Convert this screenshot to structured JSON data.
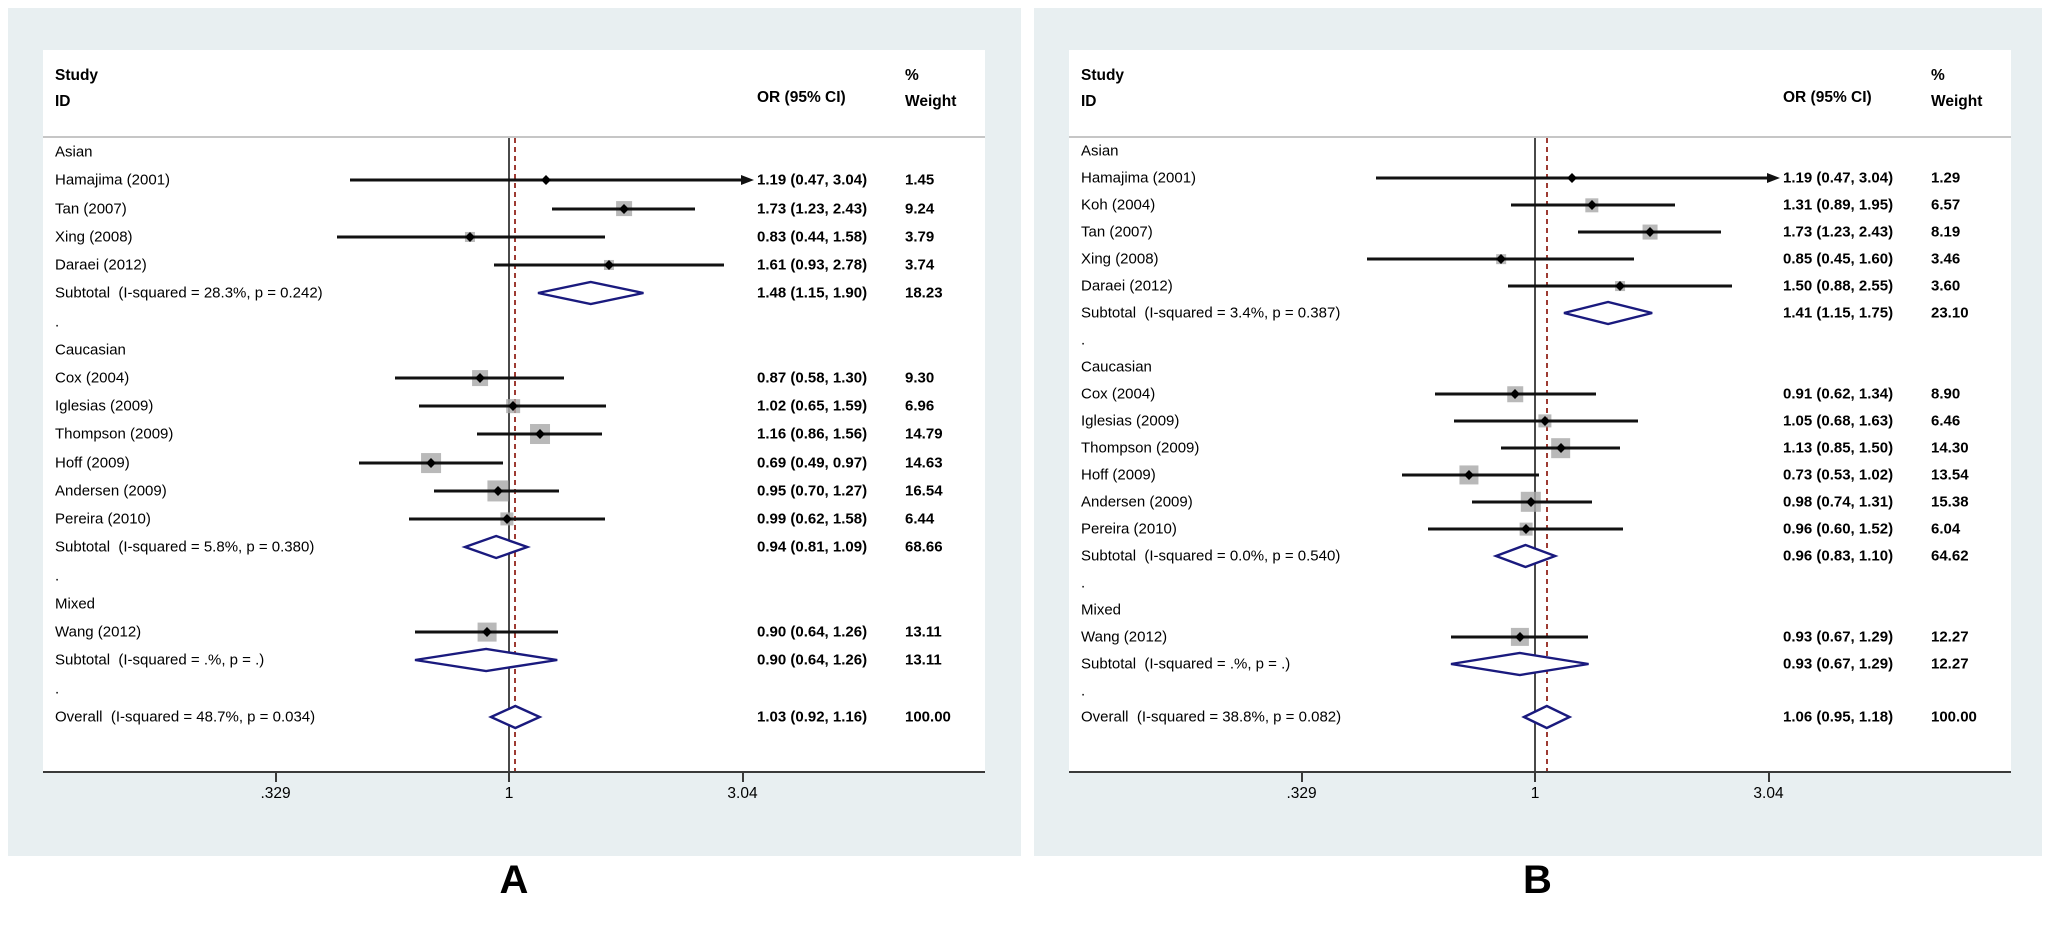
{
  "figure": {
    "description": "Two forest plots (meta-analysis of odds ratios by ethnicity subgroup)",
    "colors": {
      "panel_background": "#e8eff1",
      "plot_background": "#ffffff",
      "diamond_outline": "#1a1a7e",
      "dashed_overall_line": "#9e3b33",
      "null_line": "#4a4a4a",
      "ci_line": "#111111",
      "weight_square": "#a8a8a8"
    }
  },
  "chart_data": [
    {
      "type": "forest",
      "panel_label": "A",
      "columns": {
        "study_line1": "Study",
        "study_line2": "ID",
        "or": "OR (95% CI)",
        "pct": "%",
        "weight": "Weight"
      },
      "axis": {
        "scale": "log",
        "ticks": [
          ".329",
          "1",
          "3.04"
        ],
        "tick_values": [
          0.329,
          1,
          3.04
        ],
        "null_line": 1,
        "overall_or": 1.03
      },
      "rows": [
        {
          "kind": "group",
          "label": "Asian"
        },
        {
          "kind": "study",
          "label": "Hamajima (2001)",
          "or": 1.19,
          "lo": 0.47,
          "hi": 3.04,
          "arrow": true,
          "or_text": "1.19 (0.47, 3.04)",
          "weight": 1.45,
          "weight_text": "1.45"
        },
        {
          "kind": "study",
          "label": "Tan (2007)",
          "or": 1.73,
          "lo": 1.23,
          "hi": 2.43,
          "or_text": "1.73 (1.23, 2.43)",
          "weight": 9.24,
          "weight_text": "9.24"
        },
        {
          "kind": "study",
          "label": "Xing (2008)",
          "or": 0.83,
          "lo": 0.44,
          "hi": 1.58,
          "or_text": "0.83 (0.44, 1.58)",
          "weight": 3.79,
          "weight_text": "3.79"
        },
        {
          "kind": "study",
          "label": "Daraei (2012)",
          "or": 1.61,
          "lo": 0.93,
          "hi": 2.78,
          "or_text": "1.61 (0.93, 2.78)",
          "weight": 3.74,
          "weight_text": "3.74"
        },
        {
          "kind": "subtotal",
          "label": "Subtotal  (I-squared = 28.3%, p = 0.242)",
          "or": 1.48,
          "lo": 1.15,
          "hi": 1.9,
          "or_text": "1.48 (1.15, 1.90)",
          "weight_text": "18.23"
        },
        {
          "kind": "spacer",
          "label": "."
        },
        {
          "kind": "group",
          "label": "Caucasian"
        },
        {
          "kind": "study",
          "label": "Cox (2004)",
          "or": 0.87,
          "lo": 0.58,
          "hi": 1.3,
          "or_text": "0.87 (0.58, 1.30)",
          "weight": 9.3,
          "weight_text": "9.30"
        },
        {
          "kind": "study",
          "label": "Iglesias (2009)",
          "or": 1.02,
          "lo": 0.65,
          "hi": 1.59,
          "or_text": "1.02 (0.65, 1.59)",
          "weight": 6.96,
          "weight_text": "6.96"
        },
        {
          "kind": "study",
          "label": "Thompson (2009)",
          "or": 1.16,
          "lo": 0.86,
          "hi": 1.56,
          "or_text": "1.16 (0.86, 1.56)",
          "weight": 14.79,
          "weight_text": "14.79"
        },
        {
          "kind": "study",
          "label": "Hoff (2009)",
          "or": 0.69,
          "lo": 0.49,
          "hi": 0.97,
          "or_text": "0.69 (0.49, 0.97)",
          "weight": 14.63,
          "weight_text": "14.63"
        },
        {
          "kind": "study",
          "label": "Andersen (2009)",
          "or": 0.95,
          "lo": 0.7,
          "hi": 1.27,
          "or_text": "0.95 (0.70, 1.27)",
          "weight": 16.54,
          "weight_text": "16.54"
        },
        {
          "kind": "study",
          "label": "Pereira (2010)",
          "or": 0.99,
          "lo": 0.62,
          "hi": 1.58,
          "or_text": "0.99 (0.62, 1.58)",
          "weight": 6.44,
          "weight_text": "6.44"
        },
        {
          "kind": "subtotal",
          "label": "Subtotal  (I-squared = 5.8%, p = 0.380)",
          "or": 0.94,
          "lo": 0.81,
          "hi": 1.09,
          "or_text": "0.94 (0.81, 1.09)",
          "weight_text": "68.66"
        },
        {
          "kind": "spacer",
          "label": "."
        },
        {
          "kind": "group",
          "label": "Mixed"
        },
        {
          "kind": "study",
          "label": "Wang (2012)",
          "or": 0.9,
          "lo": 0.64,
          "hi": 1.26,
          "or_text": "0.90 (0.64, 1.26)",
          "weight": 13.11,
          "weight_text": "13.11"
        },
        {
          "kind": "subtotal",
          "label": "Subtotal  (I-squared = .%, p = .)",
          "or": 0.9,
          "lo": 0.64,
          "hi": 1.26,
          "or_text": "0.90 (0.64, 1.26)",
          "weight_text": "13.11"
        },
        {
          "kind": "spacer",
          "label": "."
        },
        {
          "kind": "overall",
          "label": "Overall  (I-squared = 48.7%, p = 0.034)",
          "or": 1.03,
          "lo": 0.92,
          "hi": 1.16,
          "or_text": "1.03 (0.92, 1.16)",
          "weight_text": "100.00"
        }
      ]
    },
    {
      "type": "forest",
      "panel_label": "B",
      "columns": {
        "study_line1": "Study",
        "study_line2": "ID",
        "or": "OR (95% CI)",
        "pct": "%",
        "weight": "Weight"
      },
      "axis": {
        "scale": "log",
        "ticks": [
          ".329",
          "1",
          "3.04"
        ],
        "tick_values": [
          0.329,
          1,
          3.04
        ],
        "null_line": 1,
        "overall_or": 1.06
      },
      "rows": [
        {
          "kind": "group",
          "label": "Asian"
        },
        {
          "kind": "study",
          "label": "Hamajima (2001)",
          "or": 1.19,
          "lo": 0.47,
          "hi": 3.04,
          "arrow": true,
          "or_text": "1.19 (0.47, 3.04)",
          "weight": 1.29,
          "weight_text": "1.29"
        },
        {
          "kind": "study",
          "label": "Koh (2004)",
          "or": 1.31,
          "lo": 0.89,
          "hi": 1.95,
          "or_text": "1.31 (0.89, 1.95)",
          "weight": 6.57,
          "weight_text": "6.57"
        },
        {
          "kind": "study",
          "label": "Tan (2007)",
          "or": 1.73,
          "lo": 1.23,
          "hi": 2.43,
          "or_text": "1.73 (1.23, 2.43)",
          "weight": 8.19,
          "weight_text": "8.19"
        },
        {
          "kind": "study",
          "label": "Xing (2008)",
          "or": 0.85,
          "lo": 0.45,
          "hi": 1.6,
          "or_text": "0.85 (0.45, 1.60)",
          "weight": 3.46,
          "weight_text": "3.46"
        },
        {
          "kind": "study",
          "label": "Daraei (2012)",
          "or": 1.5,
          "lo": 0.88,
          "hi": 2.55,
          "or_text": "1.50 (0.88, 2.55)",
          "weight": 3.6,
          "weight_text": "3.60"
        },
        {
          "kind": "subtotal",
          "label": "Subtotal  (I-squared = 3.4%, p = 0.387)",
          "or": 1.41,
          "lo": 1.15,
          "hi": 1.75,
          "or_text": "1.41 (1.15, 1.75)",
          "weight_text": "23.10"
        },
        {
          "kind": "spacer",
          "label": "."
        },
        {
          "kind": "group",
          "label": "Caucasian"
        },
        {
          "kind": "study",
          "label": "Cox (2004)",
          "or": 0.91,
          "lo": 0.62,
          "hi": 1.34,
          "or_text": "0.91 (0.62, 1.34)",
          "weight": 8.9,
          "weight_text": "8.90"
        },
        {
          "kind": "study",
          "label": "Iglesias (2009)",
          "or": 1.05,
          "lo": 0.68,
          "hi": 1.63,
          "or_text": "1.05 (0.68, 1.63)",
          "weight": 6.46,
          "weight_text": "6.46"
        },
        {
          "kind": "study",
          "label": "Thompson (2009)",
          "or": 1.13,
          "lo": 0.85,
          "hi": 1.5,
          "or_text": "1.13 (0.85, 1.50)",
          "weight": 14.3,
          "weight_text": "14.30"
        },
        {
          "kind": "study",
          "label": "Hoff (2009)",
          "or": 0.73,
          "lo": 0.53,
          "hi": 1.02,
          "or_text": "0.73 (0.53, 1.02)",
          "weight": 13.54,
          "weight_text": "13.54"
        },
        {
          "kind": "study",
          "label": "Andersen (2009)",
          "or": 0.98,
          "lo": 0.74,
          "hi": 1.31,
          "or_text": "0.98 (0.74, 1.31)",
          "weight": 15.38,
          "weight_text": "15.38"
        },
        {
          "kind": "study",
          "label": "Pereira (2010)",
          "or": 0.96,
          "lo": 0.6,
          "hi": 1.52,
          "or_text": "0.96 (0.60, 1.52)",
          "weight": 6.04,
          "weight_text": "6.04"
        },
        {
          "kind": "subtotal",
          "label": "Subtotal  (I-squared = 0.0%, p = 0.540)",
          "or": 0.96,
          "lo": 0.83,
          "hi": 1.1,
          "or_text": "0.96 (0.83, 1.10)",
          "weight_text": "64.62"
        },
        {
          "kind": "spacer",
          "label": "."
        },
        {
          "kind": "group",
          "label": "Mixed"
        },
        {
          "kind": "study",
          "label": "Wang (2012)",
          "or": 0.93,
          "lo": 0.67,
          "hi": 1.29,
          "or_text": "0.93 (0.67, 1.29)",
          "weight": 12.27,
          "weight_text": "12.27"
        },
        {
          "kind": "subtotal",
          "label": "Subtotal  (I-squared = .%, p = .)",
          "or": 0.93,
          "lo": 0.67,
          "hi": 1.29,
          "or_text": "0.93 (0.67, 1.29)",
          "weight_text": "12.27"
        },
        {
          "kind": "spacer",
          "label": "."
        },
        {
          "kind": "overall",
          "label": "Overall  (I-squared = 38.8%, p = 0.082)",
          "or": 1.06,
          "lo": 0.95,
          "hi": 1.18,
          "or_text": "1.06 (0.95, 1.18)",
          "weight_text": "100.00"
        }
      ]
    }
  ]
}
